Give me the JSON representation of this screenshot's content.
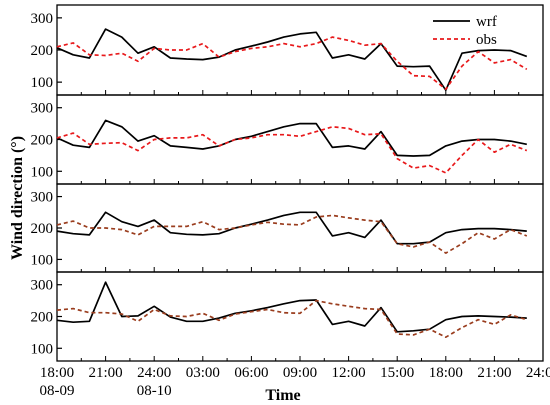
{
  "figure": {
    "ylabel": "Wind direction (°)",
    "xlabel": "Time",
    "legend": [
      {
        "label": "wrf",
        "color": "#000000",
        "style": "solid"
      },
      {
        "label": "obs",
        "color": "#e8191b",
        "style": "dashed"
      }
    ],
    "obs_color_lower_panels": "#9a3d1e",
    "x_tick_labels": [
      {
        "x": 0,
        "lines": [
          "18:00",
          "08-09"
        ]
      },
      {
        "x": 3,
        "lines": [
          "21:00"
        ]
      },
      {
        "x": 6,
        "lines": [
          "24:00",
          "08-10"
        ]
      },
      {
        "x": 9,
        "lines": [
          "03:00"
        ]
      },
      {
        "x": 12,
        "lines": [
          "06:00"
        ]
      },
      {
        "x": 15,
        "lines": [
          "09:00"
        ]
      },
      {
        "x": 18,
        "lines": [
          "12:00"
        ]
      },
      {
        "x": 21,
        "lines": [
          "15:00"
        ]
      },
      {
        "x": 24,
        "lines": [
          "18:00"
        ]
      },
      {
        "x": 27,
        "lines": [
          "21:00"
        ]
      },
      {
        "x": 30,
        "lines": [
          "24:00"
        ]
      }
    ]
  },
  "chart_data": [
    {
      "type": "line",
      "panel": 1,
      "x_unit": "hours since 18:00 08-09",
      "xlim": [
        0,
        30
      ],
      "ylim": [
        60,
        340
      ],
      "yticks": [
        100,
        200,
        300
      ],
      "show_legend": true,
      "series": [
        {
          "name": "wrf",
          "x": [
            0,
            1,
            2,
            3,
            4,
            5,
            6,
            7,
            8,
            9,
            10,
            11,
            12,
            13,
            14,
            15,
            16,
            17,
            18,
            19,
            20,
            21,
            22,
            23,
            24,
            25,
            26,
            27,
            28,
            29
          ],
          "values": [
            207,
            185,
            175,
            265,
            240,
            190,
            210,
            175,
            172,
            170,
            178,
            200,
            212,
            225,
            240,
            250,
            255,
            175,
            185,
            172,
            220,
            150,
            148,
            150,
            75,
            190,
            198,
            200,
            198,
            180
          ]
        },
        {
          "name": "obs",
          "x": [
            0,
            1,
            2,
            3,
            4,
            5,
            6,
            7,
            8,
            9,
            10,
            11,
            12,
            13,
            14,
            15,
            16,
            17,
            18,
            19,
            20,
            21,
            22,
            23,
            24,
            25,
            26,
            27,
            28,
            29
          ],
          "values": [
            210,
            222,
            185,
            183,
            190,
            165,
            205,
            200,
            200,
            220,
            178,
            195,
            205,
            210,
            220,
            210,
            220,
            240,
            230,
            215,
            220,
            165,
            120,
            118,
            78,
            150,
            195,
            160,
            170,
            140
          ]
        }
      ]
    },
    {
      "type": "line",
      "panel": 2,
      "x_unit": "hours since 18:00 08-09",
      "xlim": [
        0,
        30
      ],
      "ylim": [
        60,
        340
      ],
      "yticks": [
        100,
        200,
        300
      ],
      "show_legend": false,
      "series": [
        {
          "name": "wrf",
          "x": [
            0,
            1,
            2,
            3,
            4,
            5,
            6,
            7,
            8,
            9,
            10,
            11,
            12,
            13,
            14,
            15,
            16,
            17,
            18,
            19,
            20,
            21,
            22,
            23,
            24,
            25,
            26,
            27,
            28,
            29
          ],
          "values": [
            205,
            182,
            175,
            260,
            240,
            195,
            212,
            180,
            175,
            170,
            180,
            200,
            210,
            225,
            240,
            250,
            250,
            175,
            180,
            170,
            225,
            150,
            148,
            150,
            180,
            195,
            200,
            200,
            195,
            185
          ]
        },
        {
          "name": "obs",
          "x": [
            0,
            1,
            2,
            3,
            4,
            5,
            6,
            7,
            8,
            9,
            10,
            11,
            12,
            13,
            14,
            15,
            16,
            17,
            18,
            19,
            20,
            21,
            22,
            23,
            24,
            25,
            26,
            27,
            28,
            29
          ],
          "values": [
            205,
            220,
            185,
            188,
            190,
            165,
            200,
            205,
            205,
            215,
            180,
            200,
            205,
            215,
            215,
            210,
            225,
            240,
            235,
            215,
            218,
            140,
            110,
            118,
            95,
            150,
            200,
            160,
            185,
            165
          ]
        }
      ]
    },
    {
      "type": "line",
      "panel": 3,
      "x_unit": "hours since 18:00 08-09",
      "xlim": [
        0,
        30
      ],
      "ylim": [
        60,
        340
      ],
      "yticks": [
        100,
        200,
        300
      ],
      "show_legend": false,
      "series": [
        {
          "name": "wrf",
          "x": [
            0,
            1,
            2,
            3,
            4,
            5,
            6,
            7,
            8,
            9,
            10,
            11,
            12,
            13,
            14,
            15,
            16,
            17,
            18,
            19,
            20,
            21,
            22,
            23,
            24,
            25,
            26,
            27,
            28,
            29
          ],
          "values": [
            190,
            182,
            178,
            250,
            220,
            205,
            225,
            185,
            180,
            178,
            182,
            200,
            212,
            225,
            240,
            250,
            250,
            175,
            185,
            170,
            225,
            150,
            150,
            155,
            185,
            195,
            198,
            198,
            195,
            190
          ]
        },
        {
          "name": "obs",
          "x": [
            0,
            1,
            2,
            3,
            4,
            5,
            6,
            7,
            8,
            9,
            10,
            11,
            12,
            13,
            14,
            15,
            16,
            17,
            18,
            19,
            20,
            21,
            22,
            23,
            24,
            25,
            26,
            27,
            28,
            29
          ],
          "values": [
            210,
            222,
            200,
            200,
            195,
            178,
            205,
            205,
            205,
            220,
            195,
            200,
            210,
            218,
            212,
            210,
            235,
            240,
            232,
            225,
            220,
            150,
            140,
            155,
            120,
            150,
            185,
            165,
            195,
            175
          ]
        }
      ]
    },
    {
      "type": "line",
      "panel": 4,
      "x_unit": "hours since 18:00 08-09",
      "xlim": [
        0,
        30
      ],
      "ylim": [
        60,
        340
      ],
      "yticks": [
        100,
        200,
        300
      ],
      "show_legend": false,
      "series": [
        {
          "name": "wrf",
          "x": [
            0,
            1,
            2,
            3,
            4,
            5,
            6,
            7,
            8,
            9,
            10,
            11,
            12,
            13,
            14,
            15,
            16,
            17,
            18,
            19,
            20,
            21,
            22,
            23,
            24,
            25,
            26,
            27,
            28,
            29
          ],
          "values": [
            188,
            182,
            185,
            308,
            200,
            202,
            232,
            198,
            185,
            185,
            195,
            210,
            218,
            228,
            240,
            250,
            252,
            175,
            185,
            170,
            228,
            152,
            155,
            160,
            190,
            200,
            202,
            200,
            198,
            195
          ]
        },
        {
          "name": "obs",
          "x": [
            0,
            1,
            2,
            3,
            4,
            5,
            6,
            7,
            8,
            9,
            10,
            11,
            12,
            13,
            14,
            15,
            16,
            17,
            18,
            19,
            20,
            21,
            22,
            23,
            24,
            25,
            26,
            27,
            28,
            29
          ],
          "values": [
            220,
            225,
            212,
            212,
            208,
            185,
            222,
            202,
            200,
            210,
            188,
            208,
            215,
            222,
            212,
            210,
            250,
            240,
            232,
            225,
            222,
            145,
            142,
            160,
            135,
            165,
            190,
            175,
            205,
            190
          ]
        }
      ]
    }
  ]
}
